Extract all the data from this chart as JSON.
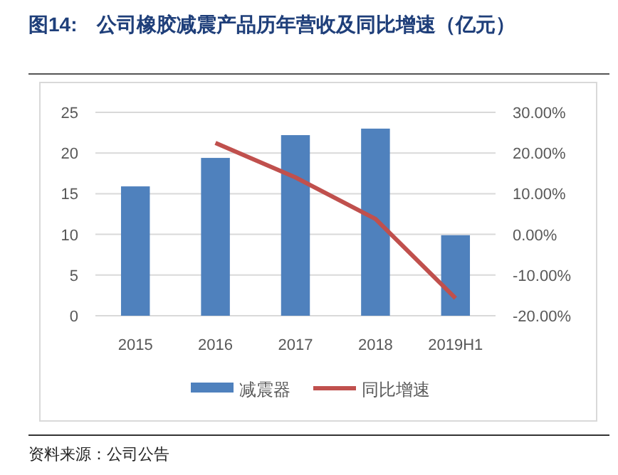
{
  "chart_data": {
    "type": "bar",
    "title": "图14:　公司橡胶减震产品历年营收及同比增速（亿元）",
    "categories": [
      "2015",
      "2016",
      "2017",
      "2018",
      "2019H1"
    ],
    "series": [
      {
        "name": "减震器",
        "color": "#4f81bd",
        "values": [
          15.9,
          19.4,
          22.2,
          23.0,
          9.9
        ]
      },
      {
        "name": "同比增速",
        "type": "line",
        "axis": "y2",
        "color": "#c0504d",
        "values": [
          null,
          22.5,
          14.0,
          3.8,
          -15.7
        ]
      }
    ],
    "ylim": [
      0,
      25
    ],
    "yticks": [
      0,
      5,
      10,
      15,
      20,
      25
    ],
    "y2lim": [
      -20,
      30
    ],
    "y2ticks": [
      {
        "value": -20,
        "label": "-20.00%"
      },
      {
        "value": -10,
        "label": "-10.00%"
      },
      {
        "value": 0,
        "label": "0.00%"
      },
      {
        "value": 10,
        "label": "10.00%"
      },
      {
        "value": 20,
        "label": "20.00%"
      },
      {
        "value": 30,
        "label": "30.00%"
      }
    ],
    "grid": "y",
    "legend": "bottom",
    "marker": "none",
    "annotations": [
      "资料来源：公司公告"
    ]
  }
}
